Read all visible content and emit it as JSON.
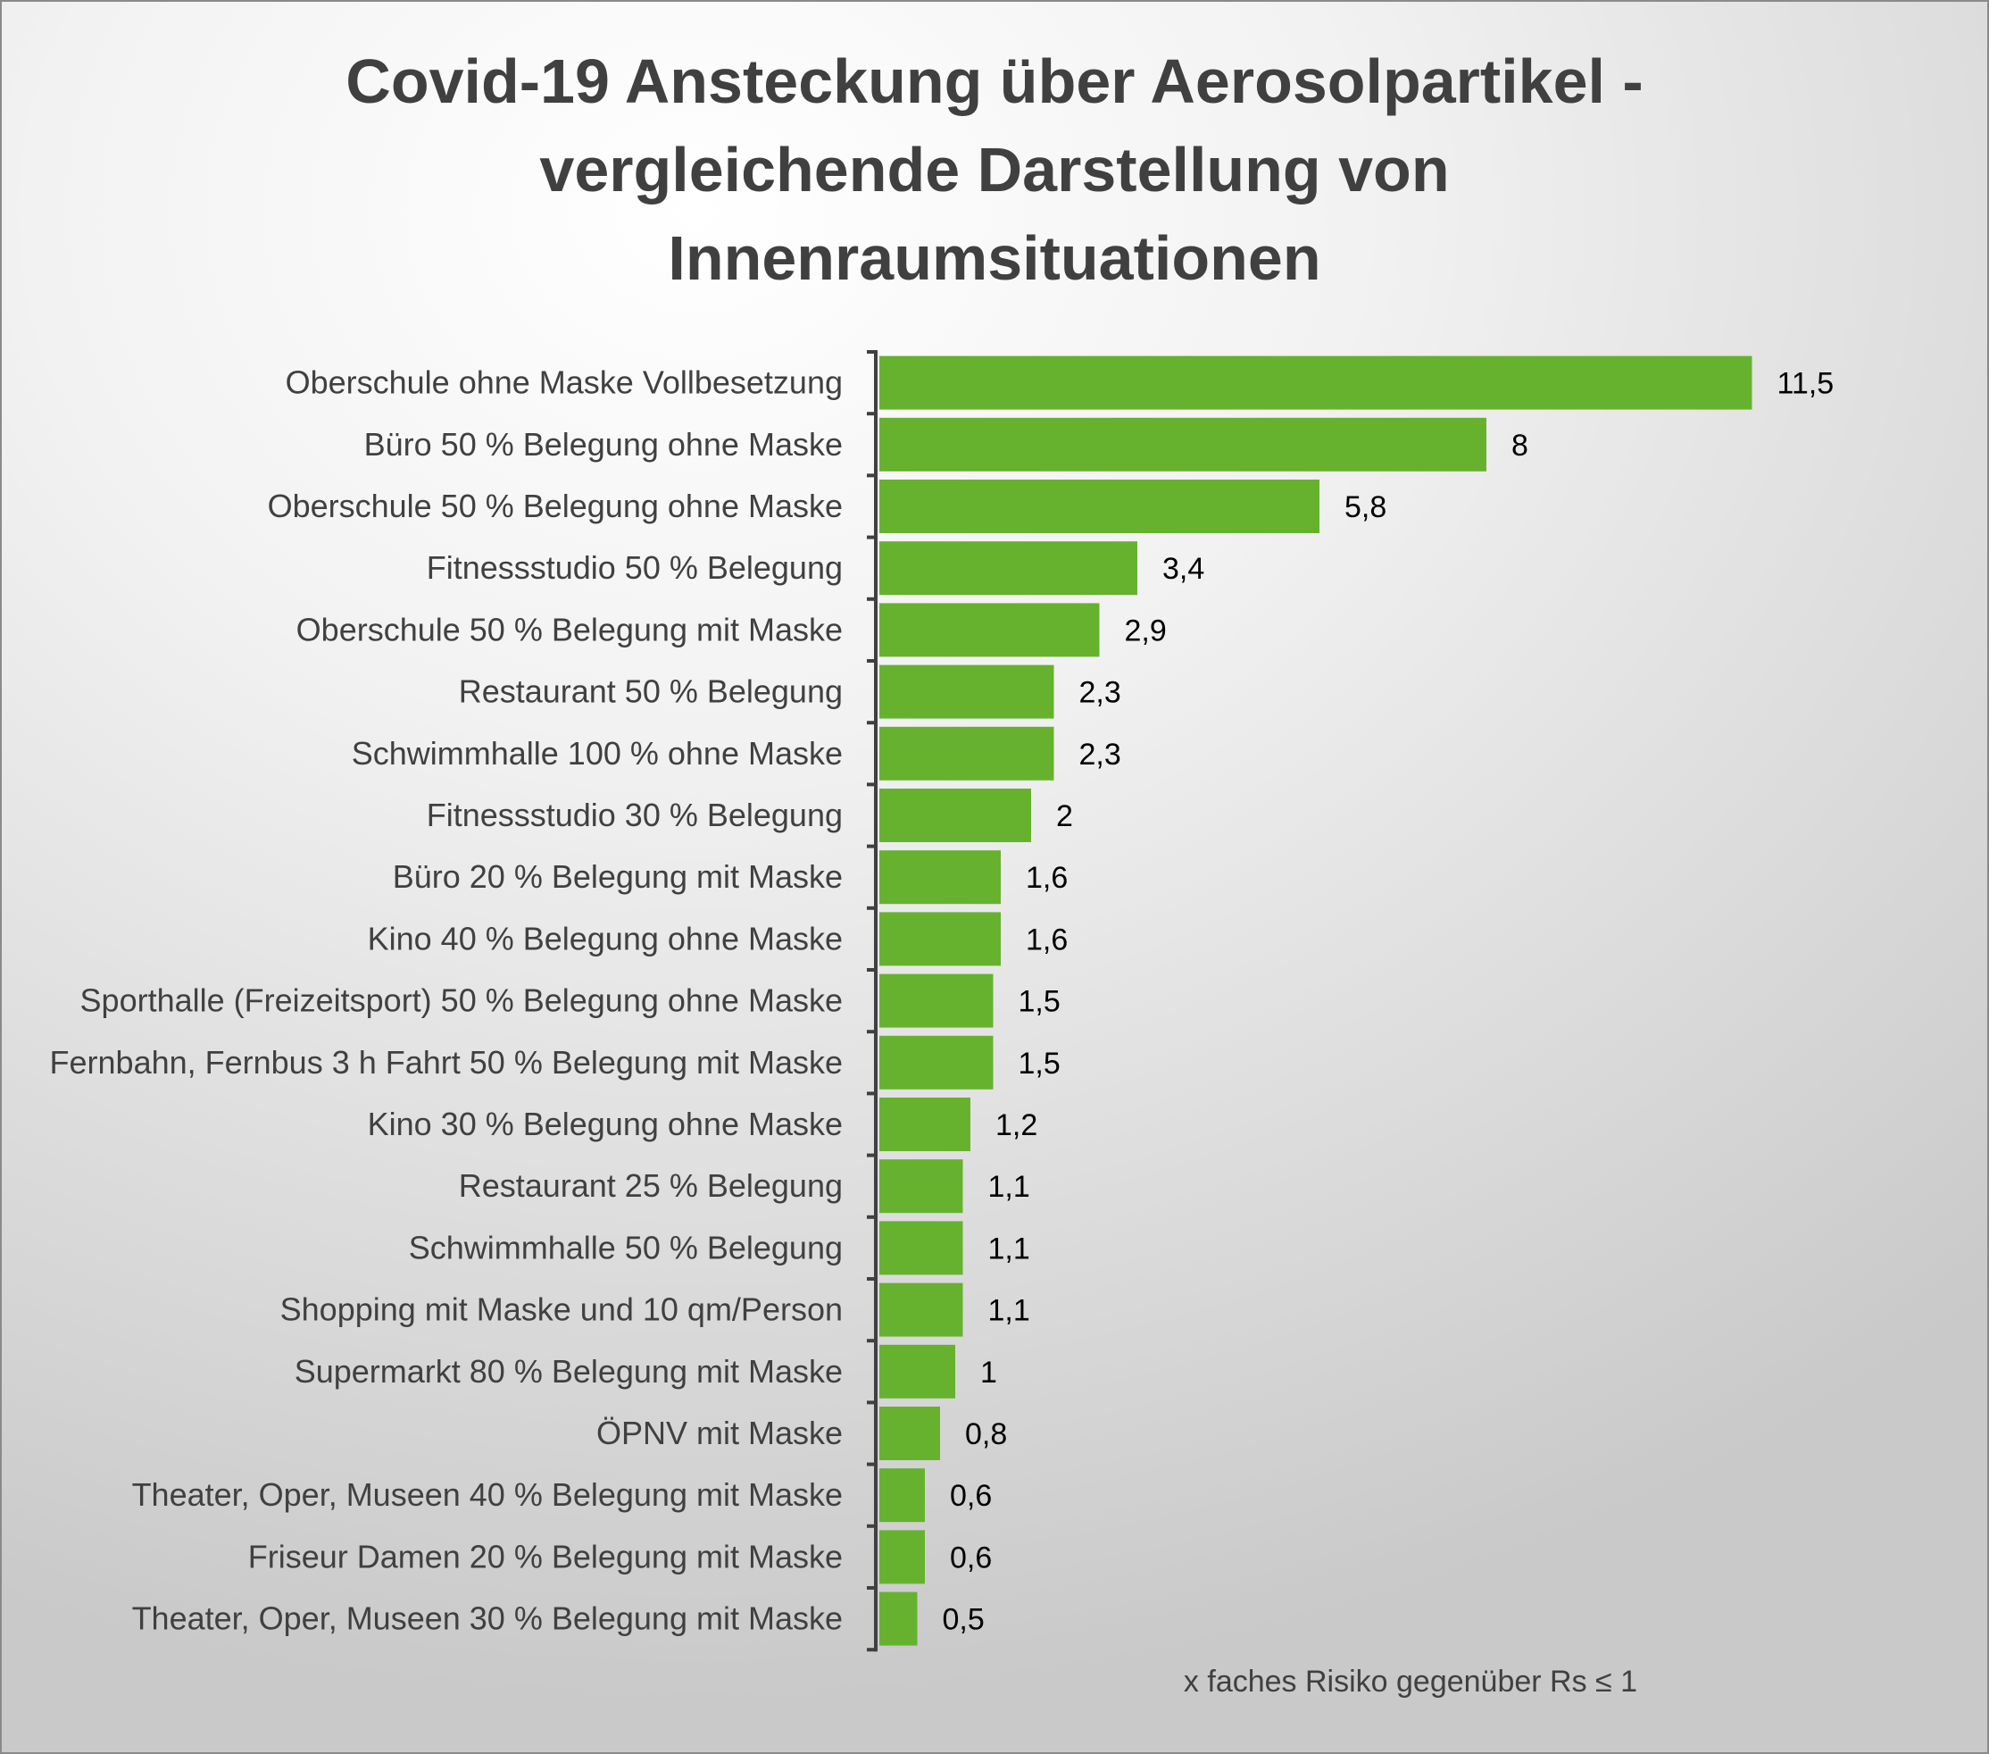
{
  "chart_data": {
    "type": "bar",
    "orientation": "horizontal",
    "title_lines": [
      "Covid-19 Ansteckung über Aerosolpartikel -",
      "vergleichende Darstellung von",
      "Innenraumsituationen"
    ],
    "xlabel": "x faches Risiko gegenüber Rs ≤ 1",
    "ylabel": "",
    "categories": [
      "Oberschule ohne Maske Vollbesetzung",
      "Büro 50 % Belegung ohne Maske",
      "Oberschule 50 % Belegung ohne Maske",
      "Fitnessstudio 50 % Belegung",
      "Oberschule 50 % Belegung mit Maske",
      "Restaurant 50 % Belegung",
      "Schwimmhalle 100 % ohne Maske",
      "Fitnessstudio 30 % Belegung",
      "Büro 20 % Belegung mit Maske",
      "Kino 40 % Belegung ohne Maske",
      "Sporthalle (Freizeitsport) 50 % Belegung ohne Maske",
      "Fernbahn, Fernbus 3 h Fahrt 50 % Belegung mit Maske",
      "Kino 30 % Belegung ohne Maske",
      "Restaurant 25 % Belegung",
      "Schwimmhalle 50 % Belegung",
      "Shopping mit Maske und 10 qm/Person",
      "Supermarkt 80 % Belegung mit Maske",
      "ÖPNV mit Maske",
      "Theater, Oper, Museen 40 % Belegung mit Maske",
      "Friseur Damen 20 % Belegung mit Maske",
      "Theater, Oper, Museen 30 % Belegung mit Maske"
    ],
    "values": [
      11.5,
      8,
      5.8,
      3.4,
      2.9,
      2.3,
      2.3,
      2,
      1.6,
      1.6,
      1.5,
      1.5,
      1.2,
      1.1,
      1.1,
      1.1,
      1,
      0.8,
      0.6,
      0.6,
      0.5
    ],
    "data_labels": [
      "11,5",
      "8",
      "5,8",
      "3,4",
      "2,9",
      "2,3",
      "2,3",
      "2",
      "1,6",
      "1,6",
      "1,5",
      "1,5",
      "1,2",
      "1,1",
      "1,1",
      "1,1",
      "1",
      "0,8",
      "0,6",
      "0,6",
      "0,5"
    ],
    "xlim": [
      0,
      11.5
    ],
    "bar_color": "#66b22f",
    "axis_color": "#404040",
    "grid": false,
    "legend": "none"
  }
}
